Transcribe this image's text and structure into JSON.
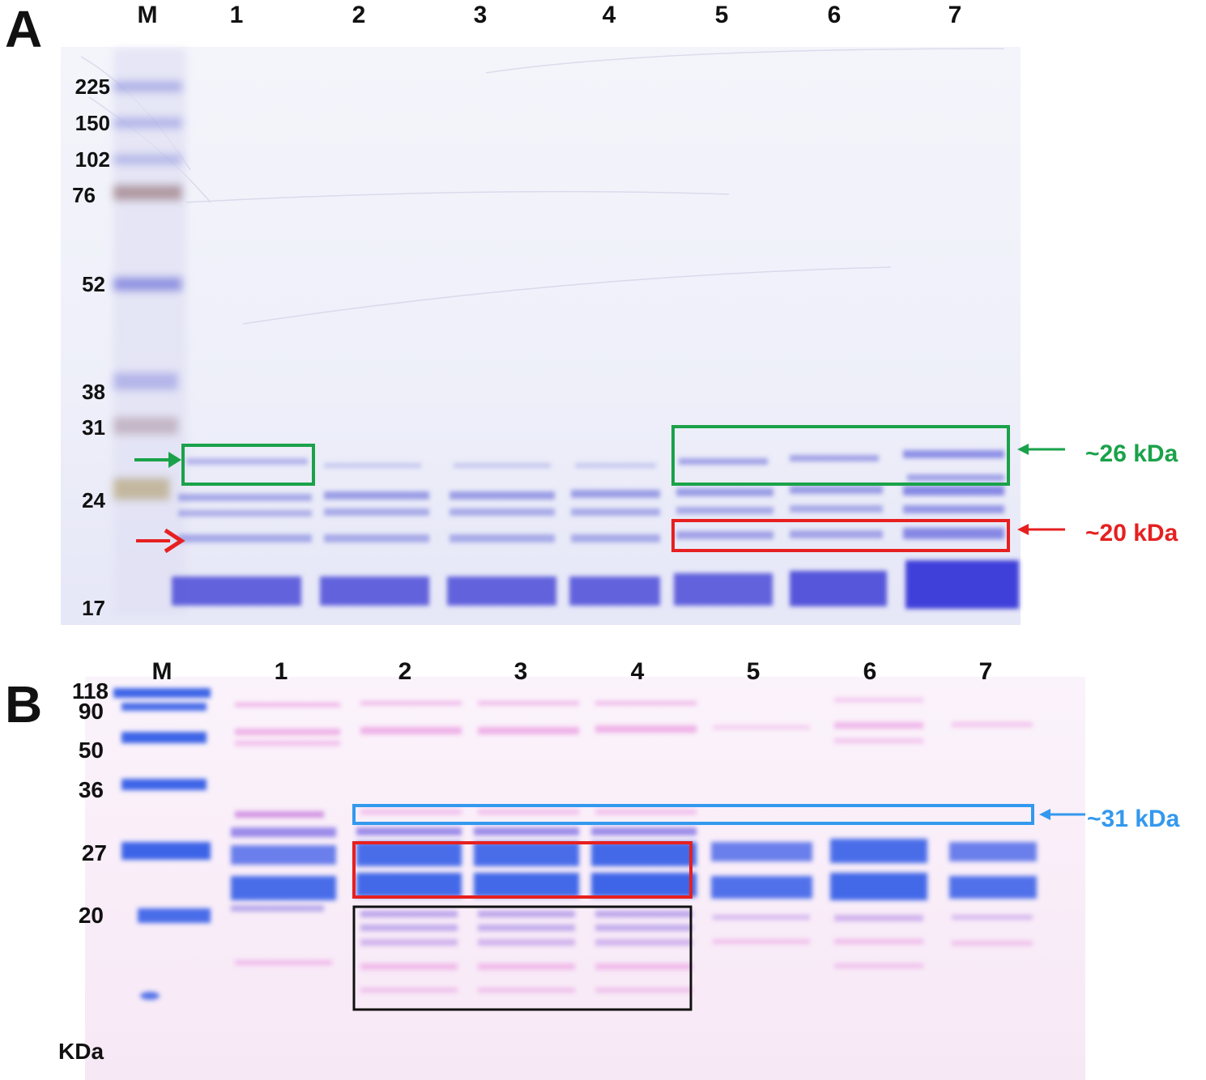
{
  "panel_a": {
    "letter": "A",
    "lanes": [
      "M",
      "1",
      "2",
      "3",
      "4",
      "5",
      "6",
      "7"
    ],
    "markers": [
      "225",
      "150",
      "102",
      "76",
      "52",
      "38",
      "31",
      "24",
      "17"
    ],
    "annotations": {
      "green": "~26 kDa",
      "red": "~20 kDa"
    }
  },
  "panel_b": {
    "letter": "B",
    "lanes": [
      "M",
      "1",
      "2",
      "3",
      "4",
      "5",
      "6",
      "7"
    ],
    "markers": [
      "118",
      "90",
      "50",
      "36",
      "27",
      "20"
    ],
    "unit": "KDa",
    "annotations": {
      "blue": "~31 kDa"
    }
  },
  "colors": {
    "green": "#1aa24a",
    "red": "#e62020",
    "blue": "#3399ee",
    "black": "#111111",
    "stain_a": "#4a4ad8",
    "stain_b_blue": "#2a55e6",
    "stain_b_pink": "#e36fd6"
  }
}
